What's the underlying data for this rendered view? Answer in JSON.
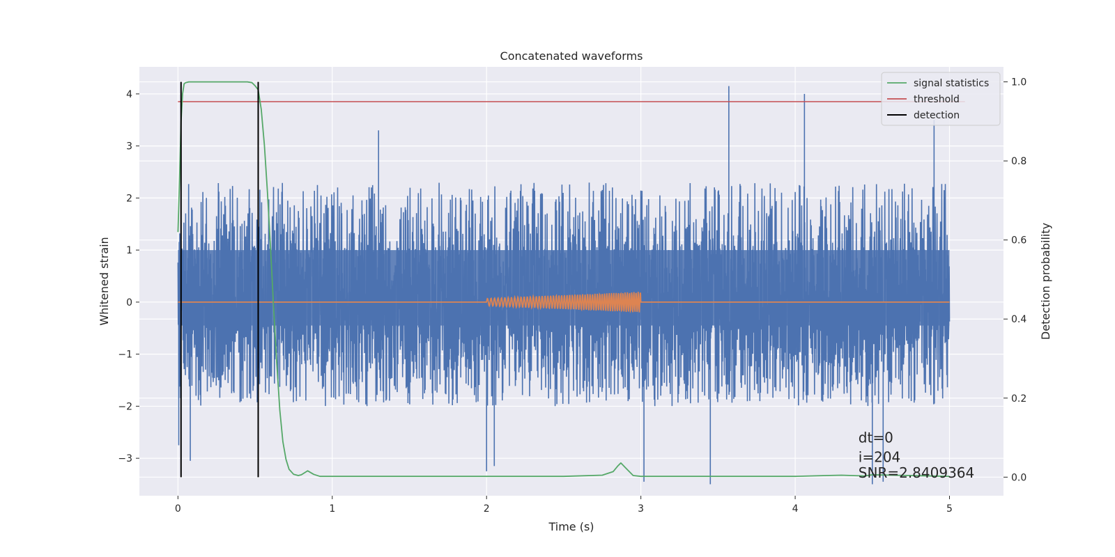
{
  "chart_data": {
    "type": "line",
    "title": "Concatenated waveforms",
    "xlabel": "Time (s)",
    "ylabel": "Whitened strain",
    "ylabel_right": "Detection probability",
    "xlim": [
      -0.25,
      5.35
    ],
    "ylim": [
      -3.72,
      4.52
    ],
    "ylim_right": [
      -0.047,
      1.038
    ],
    "xticks": [
      0,
      1,
      2,
      3,
      4,
      5
    ],
    "yticks": [
      -3,
      -2,
      -1,
      0,
      1,
      2,
      3,
      4
    ],
    "yticks_right": [
      0.0,
      0.2,
      0.4,
      0.6,
      0.8,
      1.0
    ],
    "xtick_labels": [
      "0",
      "1",
      "2",
      "3",
      "4",
      "5"
    ],
    "ytick_labels": [
      "−3",
      "−2",
      "−1",
      "0",
      "1",
      "2",
      "3",
      "4"
    ],
    "ytick_right_labels": [
      "0.0",
      "0.2",
      "0.4",
      "0.6",
      "0.8",
      "1.0"
    ],
    "grid": true,
    "legend_position": "top-right",
    "legend": [
      "signal statistics",
      "threshold",
      "detection"
    ],
    "colors": {
      "strain": "#4c72b0",
      "injection": "#dd8452",
      "statistics": "#55a868",
      "threshold": "#c44e52",
      "detection": "#000000",
      "background": "#eaeaf2",
      "grid": "#ffffff"
    },
    "strain": {
      "x_range": [
        0,
        5
      ],
      "typical_min": -2.0,
      "typical_max": 2.3,
      "band_bottom": -0.45,
      "band_top": 1.0,
      "spikes": [
        {
          "x": 0.005,
          "y": -2.75
        },
        {
          "x": 0.08,
          "y": -3.05
        },
        {
          "x": 1.3,
          "y": 3.3
        },
        {
          "x": 2.0,
          "y": -3.25
        },
        {
          "x": 2.05,
          "y": -3.15
        },
        {
          "x": 3.02,
          "y": -3.45
        },
        {
          "x": 3.45,
          "y": -3.5
        },
        {
          "x": 3.57,
          "y": 4.15
        },
        {
          "x": 4.06,
          "y": 4.0
        },
        {
          "x": 4.5,
          "y": -3.5
        },
        {
          "x": 4.57,
          "y": -3.45
        },
        {
          "x": 4.9,
          "y": 3.5
        }
      ]
    },
    "injection": {
      "x_start": 2.0,
      "x_end": 3.0,
      "amp_start": 0.07,
      "amp_end": 0.2,
      "cycles": 50,
      "baseline": 0
    },
    "signal_statistics": {
      "x": [
        0.0,
        0.01,
        0.02,
        0.03,
        0.04,
        0.05,
        0.07,
        0.1,
        0.2,
        0.3,
        0.4,
        0.45,
        0.48,
        0.5,
        0.52,
        0.54,
        0.56,
        0.58,
        0.6,
        0.62,
        0.64,
        0.66,
        0.68,
        0.7,
        0.72,
        0.75,
        0.78,
        0.8,
        0.84,
        0.88,
        0.92,
        1.0,
        1.5,
        2.0,
        2.5,
        2.75,
        2.82,
        2.85,
        2.87,
        2.9,
        2.95,
        3.0,
        3.5,
        4.0,
        4.2,
        4.3,
        4.45,
        4.5,
        5.0
      ],
      "y": [
        0.62,
        0.75,
        0.9,
        0.97,
        0.995,
        0.998,
        1.0,
        1.0,
        1.0,
        1.0,
        1.0,
        1.0,
        0.998,
        0.99,
        0.98,
        0.93,
        0.84,
        0.72,
        0.58,
        0.43,
        0.29,
        0.17,
        0.09,
        0.045,
        0.02,
        0.007,
        0.004,
        0.006,
        0.016,
        0.007,
        0.002,
        0.002,
        0.002,
        0.002,
        0.002,
        0.005,
        0.014,
        0.028,
        0.036,
        0.024,
        0.004,
        0.002,
        0.002,
        0.002,
        0.004,
        0.005,
        0.003,
        0.006,
        0.002
      ]
    },
    "threshold": {
      "value": 0.95,
      "x_range": [
        0,
        5.1
      ]
    },
    "detections": [
      0.02,
      0.52
    ],
    "detection_ymin": 0.0,
    "detection_ymax": 1.0,
    "annotations": [
      {
        "text": "dt=0",
        "x": 4.5,
        "y": -2.7
      },
      {
        "text": "i=204",
        "x": 4.5,
        "y": -3.07
      },
      {
        "text": "SNR=2.8409364",
        "x": 4.5,
        "y": -3.37
      }
    ]
  }
}
